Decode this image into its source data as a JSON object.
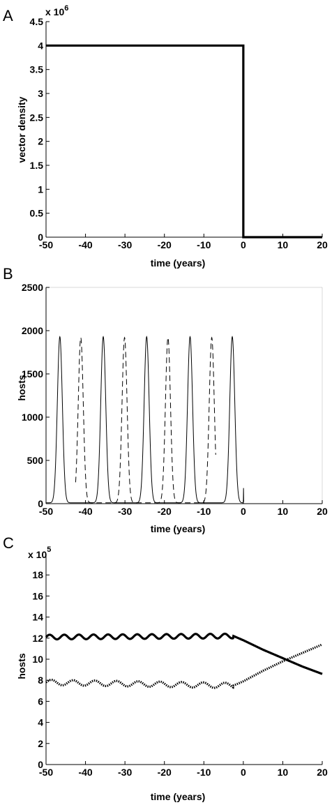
{
  "chart_data": [
    {
      "type": "line",
      "panel_label": "A",
      "xlabel": "time (years)",
      "ylabel": "vector density",
      "scale_prefix": "x 10",
      "scale_exponent": "6",
      "xlim": [
        -50,
        20
      ],
      "ylim": [
        0,
        4.5
      ],
      "x_ticks": [
        "-50",
        "-40",
        "-30",
        "-20",
        "-10",
        "0",
        "10",
        "20"
      ],
      "y_ticks": [
        "0",
        "0.5",
        "1",
        "1.5",
        "2",
        "2.5",
        "3",
        "3.5",
        "4",
        "4.5"
      ],
      "series": [
        {
          "style": "solid-thick",
          "x": [
            -50,
            0,
            0,
            20
          ],
          "y": [
            4.0,
            4.0,
            0.0,
            0.0
          ]
        }
      ]
    },
    {
      "type": "line",
      "panel_label": "B",
      "xlabel": "time (years)",
      "ylabel": "hosts",
      "xlim": [
        -50,
        20
      ],
      "ylim": [
        0,
        2500
      ],
      "x_ticks": [
        "-50",
        "-40",
        "-30",
        "-20",
        "-10",
        "0",
        "10",
        "20"
      ],
      "y_ticks": [
        "0",
        "500",
        "1000",
        "1500",
        "2000",
        "2500"
      ],
      "series": [
        {
          "style": "solid-thin",
          "peak_times": [
            -46.5,
            -35.5,
            -24.5,
            -13.5,
            -2.8
          ],
          "peak_value": 1930,
          "baseline": 10,
          "peak_width": 0.9,
          "x_range": [
            -50,
            0
          ]
        },
        {
          "style": "dashed-thin",
          "peak_times": [
            -41.2,
            -30.1,
            -19.1,
            -8.0
          ],
          "peak_value": 1920,
          "baseline": 10,
          "peak_width": 0.9,
          "x_range": [
            -42.5,
            -7
          ]
        }
      ]
    },
    {
      "type": "line",
      "panel_label": "C",
      "xlabel": "time (years)",
      "ylabel": "hosts",
      "scale_prefix": "x 10",
      "scale_exponent": "5",
      "xlim": [
        -50,
        20
      ],
      "ylim": [
        0,
        20
      ],
      "x_ticks": [
        "-50",
        "-40",
        "-30",
        "-20",
        "-10",
        "0",
        "10",
        "20"
      ],
      "y_ticks": [
        "0",
        "2",
        "4",
        "6",
        "8",
        "10",
        "12",
        "14",
        "16",
        "18"
      ],
      "series": [
        {
          "style": "solid-thick",
          "x": [
            -50,
            -2.5,
            0,
            5,
            10,
            15,
            20
          ],
          "y": [
            12.1,
            12.2,
            11.8,
            10.9,
            10.1,
            9.3,
            8.6
          ],
          "oscillation_amplitude": 0.22,
          "oscillation_period": 3.7,
          "oscillation_until": -2.5
        },
        {
          "style": "dotted-thick",
          "x": [
            -50,
            -2.5,
            0,
            5,
            10,
            15,
            20
          ],
          "y": [
            7.8,
            7.5,
            7.9,
            8.9,
            9.8,
            10.6,
            11.4
          ],
          "oscillation_amplitude": 0.25,
          "oscillation_period": 5.5,
          "oscillation_until": -2.5
        }
      ]
    }
  ]
}
